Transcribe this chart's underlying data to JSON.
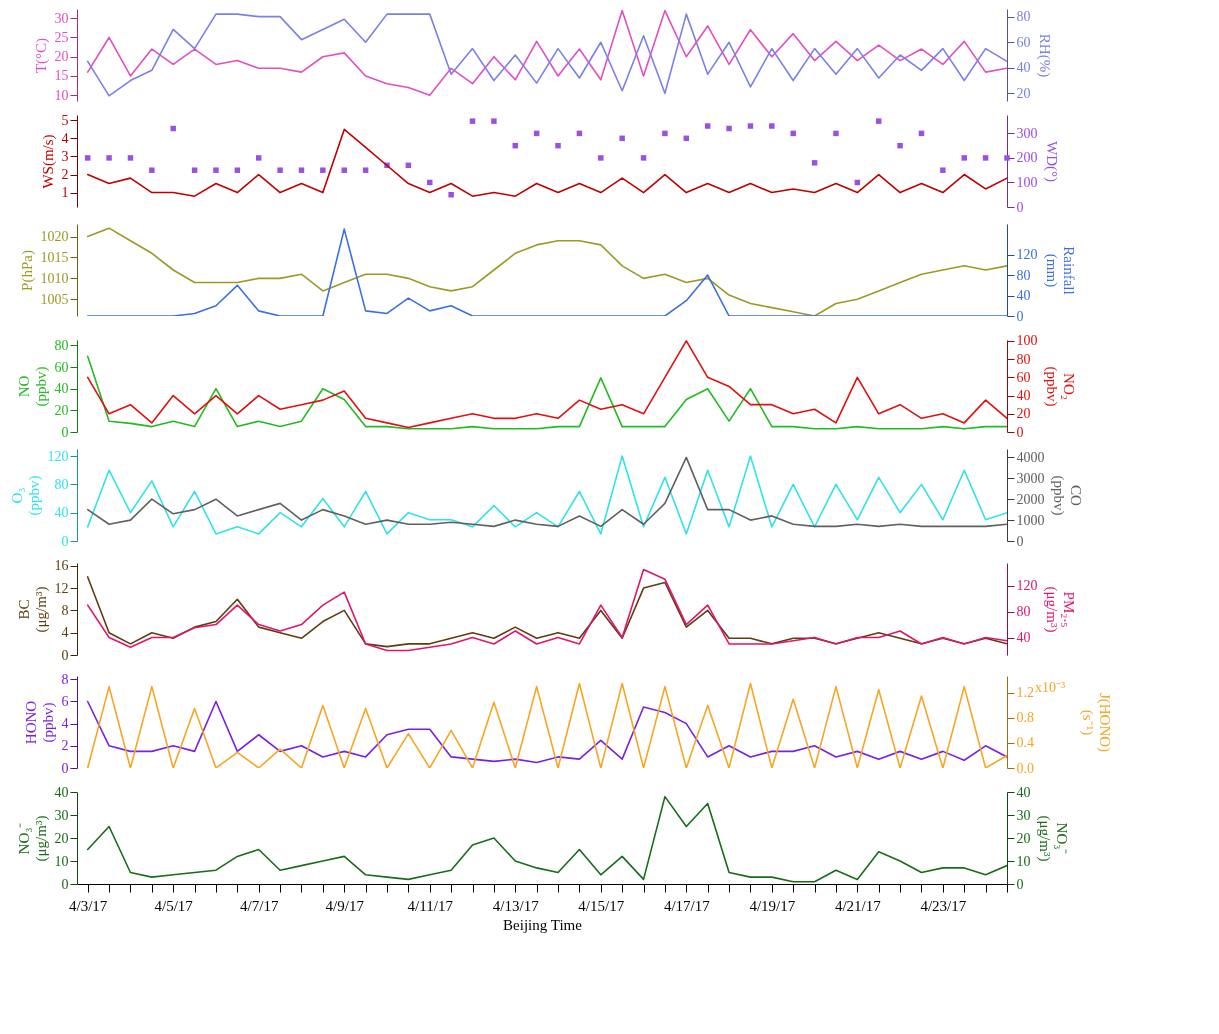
{
  "chart_data": [
    {
      "type": "line",
      "tick_labels": "y",
      "ylabel": "T(°C)",
      "y2label": "RH(%)",
      "xlim": [
        "--04-02T18:00",
        "--04-24T12:00"
      ],
      "ylim": [
        8.5,
        32.4
      ],
      "yticks": [
        10,
        15,
        20,
        25,
        30
      ],
      "y2lim": [
        14,
        86
      ],
      "y2ticks": [
        20,
        40,
        60,
        80
      ],
      "x": [
        "--04-03T00:00",
        "--04-03T12:00",
        "--04-04T00:00",
        "--04-04T12:00",
        "--04-05T00:00",
        "--04-05T12:00",
        "--04-06T00:00",
        "--04-06T12:00",
        "--04-07T00:00",
        "--04-07T12:00",
        "--04-08T00:00",
        "--04-08T12:00",
        "--04-09T00:00",
        "--04-09T12:00",
        "--04-10T00:00",
        "--04-10T12:00",
        "--04-11T00:00",
        "--04-11T12:00",
        "--04-12T00:00",
        "--04-12T12:00",
        "--04-13T00:00",
        "--04-13T12:00",
        "--04-14T00:00",
        "--04-14T12:00",
        "--04-15T00:00",
        "--04-15T12:00",
        "--04-16T00:00",
        "--04-16T12:00",
        "--04-17T00:00",
        "--04-17T12:00",
        "--04-18T00:00",
        "--04-18T12:00",
        "--04-19T00:00",
        "--04-19T12:00",
        "--04-20T00:00",
        "--04-20T12:00",
        "--04-21T00:00",
        "--04-21T12:00",
        "--04-22T00:00",
        "--04-22T12:00",
        "--04-23T00:00",
        "--04-23T12:00",
        "--04-24T00:00",
        "--04-24T12:00"
      ],
      "series": [
        {
          "type": "line",
          "color": "#e24fc0",
          "values": [
            16,
            25,
            15,
            22,
            18,
            22,
            18,
            19,
            17,
            17,
            16,
            20,
            21,
            15,
            13,
            12,
            10,
            17,
            13,
            20,
            14,
            24,
            15,
            22,
            14,
            32,
            15,
            32,
            20,
            28,
            18,
            27,
            20,
            26,
            19,
            24,
            19,
            23,
            19,
            22,
            18,
            24,
            16,
            17
          ]
        },
        {
          "type": "line",
          "axis": "y2",
          "color": "#7b80e6",
          "values": [
            45,
            18,
            30,
            38,
            70,
            55,
            82,
            82,
            80,
            80,
            62,
            70,
            78,
            60,
            82,
            82,
            82,
            35,
            55,
            30,
            50,
            28,
            55,
            32,
            60,
            22,
            65,
            20,
            82,
            35,
            60,
            25,
            55,
            30,
            55,
            35,
            55,
            32,
            50,
            38,
            55,
            30,
            55,
            45
          ]
        }
      ]
    },
    {
      "type": "line",
      "tick_labels": "y",
      "ylabel": "WS(m/s)",
      "y2label": "WD(°)",
      "xlim": [
        "--04-02T18:00",
        "--04-24T12:00"
      ],
      "ylim": [
        0.2,
        5.3
      ],
      "yticks": [
        1,
        2,
        3,
        4,
        5
      ],
      "y2lim": [
        0,
        375
      ],
      "y2ticks": [
        0,
        100,
        200,
        300
      ],
      "x": [
        "--04-03T00:00",
        "--04-03T12:00",
        "--04-04T00:00",
        "--04-04T12:00",
        "--04-05T00:00",
        "--04-05T12:00",
        "--04-06T00:00",
        "--04-06T12:00",
        "--04-07T00:00",
        "--04-07T12:00",
        "--04-08T00:00",
        "--04-08T12:00",
        "--04-09T00:00",
        "--04-09T12:00",
        "--04-10T00:00",
        "--04-10T12:00",
        "--04-11T00:00",
        "--04-11T12:00",
        "--04-12T00:00",
        "--04-12T12:00",
        "--04-13T00:00",
        "--04-13T12:00",
        "--04-14T00:00",
        "--04-14T12:00",
        "--04-15T00:00",
        "--04-15T12:00",
        "--04-16T00:00",
        "--04-16T12:00",
        "--04-17T00:00",
        "--04-17T12:00",
        "--04-18T00:00",
        "--04-18T12:00",
        "--04-19T00:00",
        "--04-19T12:00",
        "--04-20T00:00",
        "--04-20T12:00",
        "--04-21T00:00",
        "--04-21T12:00",
        "--04-22T00:00",
        "--04-22T12:00",
        "--04-23T00:00",
        "--04-23T12:00",
        "--04-24T00:00",
        "--04-24T12:00"
      ],
      "series": [
        {
          "type": "scatter",
          "axis": "y2",
          "color": "#9b4fe6",
          "values": [
            200,
            200,
            200,
            150,
            320,
            150,
            150,
            150,
            200,
            150,
            150,
            150,
            150,
            150,
            170,
            170,
            100,
            50,
            350,
            350,
            250,
            300,
            250,
            300,
            200,
            280,
            200,
            300,
            280,
            330,
            320,
            330,
            330,
            300,
            180,
            300,
            100,
            350,
            250,
            300,
            150,
            200,
            200,
            200
          ]
        },
        {
          "type": "line",
          "color": "#c00000",
          "values": [
            2,
            1.5,
            1.8,
            1,
            1,
            0.8,
            1.5,
            1,
            2,
            1,
            1.5,
            1,
            4.5,
            3.5,
            2.5,
            1.5,
            1,
            1.5,
            0.8,
            1,
            0.8,
            1.5,
            1,
            1.5,
            1,
            1.8,
            1,
            2,
            1,
            1.5,
            1,
            1.5,
            1,
            1.2,
            1,
            1.5,
            1,
            2,
            1,
            1.5,
            1,
            2,
            1.2,
            1.8
          ]
        }
      ]
    },
    {
      "type": "line",
      "tick_labels": "y",
      "ylabel": "P(hPa)",
      "y2label": "Rainfall (mm)",
      "xlim": [
        "--04-02T18:00",
        "--04-24T12:00"
      ],
      "ylim": [
        1001,
        1023
      ],
      "yticks": [
        1005,
        1010,
        1015,
        1020
      ],
      "y2lim": [
        0,
        180
      ],
      "y2ticks": [
        0,
        40,
        80,
        120
      ],
      "x": [
        "--04-03T00:00",
        "--04-03T12:00",
        "--04-04T00:00",
        "--04-04T12:00",
        "--04-05T00:00",
        "--04-05T12:00",
        "--04-06T00:00",
        "--04-06T12:00",
        "--04-07T00:00",
        "--04-07T12:00",
        "--04-08T00:00",
        "--04-08T12:00",
        "--04-09T00:00",
        "--04-09T12:00",
        "--04-10T00:00",
        "--04-10T12:00",
        "--04-11T00:00",
        "--04-11T12:00",
        "--04-12T00:00",
        "--04-12T12:00",
        "--04-13T00:00",
        "--04-13T12:00",
        "--04-14T00:00",
        "--04-14T12:00",
        "--04-15T00:00",
        "--04-15T12:00",
        "--04-16T00:00",
        "--04-16T12:00",
        "--04-17T00:00",
        "--04-17T12:00",
        "--04-18T00:00",
        "--04-18T12:00",
        "--04-19T00:00",
        "--04-19T12:00",
        "--04-20T00:00",
        "--04-20T12:00",
        "--04-21T00:00",
        "--04-21T12:00",
        "--04-22T00:00",
        "--04-22T12:00",
        "--04-23T00:00",
        "--04-23T12:00",
        "--04-24T00:00",
        "--04-24T12:00"
      ],
      "series": [
        {
          "type": "line",
          "color": "#9c9a22",
          "values": [
            1020,
            1022,
            1019,
            1016,
            1012,
            1009,
            1009,
            1009,
            1010,
            1010,
            1011,
            1007,
            1009,
            1011,
            1011,
            1010,
            1008,
            1007,
            1008,
            1012,
            1016,
            1018,
            1019,
            1019,
            1018,
            1013,
            1010,
            1011,
            1009,
            1010,
            1006,
            1004,
            1003,
            1002,
            1001,
            1004,
            1005,
            1007,
            1009,
            1011,
            1012,
            1013,
            1012,
            1013
          ]
        },
        {
          "type": "line",
          "axis": "y2",
          "color": "#3c6fe0",
          "values": [
            0,
            0,
            0,
            0,
            0,
            5,
            20,
            60,
            10,
            0,
            0,
            0,
            170,
            10,
            5,
            35,
            10,
            20,
            0,
            0,
            0,
            0,
            0,
            0,
            0,
            0,
            0,
            0,
            30,
            80,
            0,
            0,
            0,
            0,
            0,
            0,
            0,
            0,
            0,
            0,
            0,
            0,
            0,
            0
          ]
        }
      ]
    },
    {
      "type": "line",
      "tick_labels": "y",
      "ylabel": "NO (ppbv)",
      "y2label": "NO₂ (ppbv)",
      "xlim": [
        "--04-02T18:00",
        "--04-24T12:00"
      ],
      "ylim": [
        0,
        85
      ],
      "yticks": [
        0,
        20,
        40,
        60,
        80
      ],
      "y2lim": [
        0,
        101
      ],
      "y2ticks": [
        0,
        20,
        40,
        60,
        80,
        100
      ],
      "x": [
        "--04-03T00:00",
        "--04-03T12:00",
        "--04-04T00:00",
        "--04-04T12:00",
        "--04-05T00:00",
        "--04-05T12:00",
        "--04-06T00:00",
        "--04-06T12:00",
        "--04-07T00:00",
        "--04-07T12:00",
        "--04-08T00:00",
        "--04-08T12:00",
        "--04-09T00:00",
        "--04-09T12:00",
        "--04-10T00:00",
        "--04-10T12:00",
        "--04-11T00:00",
        "--04-11T12:00",
        "--04-12T00:00",
        "--04-12T12:00",
        "--04-13T00:00",
        "--04-13T12:00",
        "--04-14T00:00",
        "--04-14T12:00",
        "--04-15T00:00",
        "--04-15T12:00",
        "--04-16T00:00",
        "--04-16T12:00",
        "--04-17T00:00",
        "--04-17T12:00",
        "--04-18T00:00",
        "--04-18T12:00",
        "--04-19T00:00",
        "--04-19T12:00",
        "--04-20T00:00",
        "--04-20T12:00",
        "--04-21T00:00",
        "--04-21T12:00",
        "--04-22T00:00",
        "--04-22T12:00",
        "--04-23T00:00",
        "--04-23T12:00",
        "--04-24T00:00",
        "--04-24T12:00"
      ],
      "series": [
        {
          "type": "line",
          "color": "#22bb22",
          "values": [
            70,
            10,
            8,
            5,
            10,
            5,
            40,
            5,
            10,
            5,
            10,
            40,
            30,
            5,
            5,
            3,
            3,
            3,
            5,
            3,
            3,
            3,
            5,
            5,
            50,
            5,
            5,
            5,
            30,
            40,
            10,
            40,
            5,
            5,
            3,
            3,
            5,
            3,
            3,
            3,
            5,
            3,
            5,
            5
          ]
        },
        {
          "type": "line",
          "axis": "y2",
          "color": "#e01010",
          "values": [
            60,
            20,
            30,
            10,
            40,
            20,
            40,
            20,
            40,
            25,
            30,
            35,
            45,
            15,
            10,
            5,
            10,
            15,
            20,
            15,
            15,
            20,
            15,
            35,
            25,
            30,
            20,
            60,
            100,
            60,
            50,
            30,
            30,
            20,
            25,
            10,
            60,
            20,
            30,
            15,
            20,
            10,
            35,
            15
          ]
        }
      ]
    },
    {
      "type": "line",
      "tick_labels": "y",
      "ylabel": "O₃ (ppbv)",
      "y2label": "CO (ppbv)",
      "xlim": [
        "--04-02T18:00",
        "--04-24T12:00"
      ],
      "ylim": [
        0,
        130
      ],
      "yticks": [
        0,
        40,
        80,
        120
      ],
      "y2lim": [
        0,
        4400
      ],
      "y2ticks": [
        0,
        1000,
        2000,
        3000,
        4000
      ],
      "x": [
        "--04-03T00:00",
        "--04-03T12:00",
        "--04-04T00:00",
        "--04-04T12:00",
        "--04-05T00:00",
        "--04-05T12:00",
        "--04-06T00:00",
        "--04-06T12:00",
        "--04-07T00:00",
        "--04-07T12:00",
        "--04-08T00:00",
        "--04-08T12:00",
        "--04-09T00:00",
        "--04-09T12:00",
        "--04-10T00:00",
        "--04-10T12:00",
        "--04-11T00:00",
        "--04-11T12:00",
        "--04-12T00:00",
        "--04-12T12:00",
        "--04-13T00:00",
        "--04-13T12:00",
        "--04-14T00:00",
        "--04-14T12:00",
        "--04-15T00:00",
        "--04-15T12:00",
        "--04-16T00:00",
        "--04-16T12:00",
        "--04-17T00:00",
        "--04-17T12:00",
        "--04-18T00:00",
        "--04-18T12:00",
        "--04-19T00:00",
        "--04-19T12:00",
        "--04-20T00:00",
        "--04-20T12:00",
        "--04-21T00:00",
        "--04-21T12:00",
        "--04-22T00:00",
        "--04-22T12:00",
        "--04-23T00:00",
        "--04-23T12:00",
        "--04-24T00:00",
        "--04-24T12:00"
      ],
      "series": [
        {
          "type": "line",
          "color": "#2fe3e8",
          "values": [
            20,
            100,
            40,
            85,
            20,
            70,
            10,
            20,
            10,
            40,
            20,
            60,
            20,
            70,
            10,
            40,
            30,
            30,
            20,
            50,
            20,
            40,
            20,
            70,
            10,
            120,
            20,
            90,
            10,
            100,
            20,
            120,
            20,
            80,
            20,
            80,
            30,
            90,
            40,
            80,
            30,
            100,
            30,
            40
          ]
        },
        {
          "type": "line",
          "axis": "y2",
          "color": "#606060",
          "values": [
            1500,
            800,
            1000,
            2000,
            1300,
            1500,
            2000,
            1200,
            1500,
            1800,
            1000,
            1500,
            1200,
            800,
            1000,
            800,
            800,
            900,
            800,
            700,
            1000,
            800,
            700,
            1200,
            700,
            1500,
            800,
            1800,
            4000,
            1500,
            1500,
            1000,
            1200,
            800,
            700,
            700,
            800,
            700,
            800,
            700,
            700,
            700,
            700,
            800
          ]
        }
      ]
    },
    {
      "type": "line",
      "tick_labels": "y",
      "ylabel": "BC (μg/m³)",
      "y2label": "PM₂.₅ (μg/m³)",
      "xlim": [
        "--04-02T18:00",
        "--04-24T12:00"
      ],
      "ylim": [
        0,
        16.5
      ],
      "yticks": [
        0,
        4,
        8,
        12,
        16
      ],
      "y2lim": [
        13,
        155
      ],
      "y2ticks": [
        40,
        80,
        120
      ],
      "x": [
        "--04-03T00:00",
        "--04-03T12:00",
        "--04-04T00:00",
        "--04-04T12:00",
        "--04-05T00:00",
        "--04-05T12:00",
        "--04-06T00:00",
        "--04-06T12:00",
        "--04-07T00:00",
        "--04-07T12:00",
        "--04-08T00:00",
        "--04-08T12:00",
        "--04-09T00:00",
        "--04-09T12:00",
        "--04-10T00:00",
        "--04-10T12:00",
        "--04-11T00:00",
        "--04-11T12:00",
        "--04-12T00:00",
        "--04-12T12:00",
        "--04-13T00:00",
        "--04-13T12:00",
        "--04-14T00:00",
        "--04-14T12:00",
        "--04-15T00:00",
        "--04-15T12:00",
        "--04-16T00:00",
        "--04-16T12:00",
        "--04-17T00:00",
        "--04-17T12:00",
        "--04-18T00:00",
        "--04-18T12:00",
        "--04-19T00:00",
        "--04-19T12:00",
        "--04-20T00:00",
        "--04-20T12:00",
        "--04-21T00:00",
        "--04-21T12:00",
        "--04-22T00:00",
        "--04-22T12:00",
        "--04-23T00:00",
        "--04-23T12:00",
        "--04-24T00:00",
        "--04-24T12:00"
      ],
      "series": [
        {
          "type": "line",
          "color": "#5e3d0e",
          "values": [
            14,
            4,
            2,
            4,
            3,
            5,
            6,
            10,
            5,
            4,
            3,
            6,
            8,
            2,
            1.5,
            2,
            2,
            3,
            4,
            3,
            5,
            3,
            4,
            3,
            8,
            3,
            12,
            13,
            5,
            8,
            3,
            3,
            2,
            3,
            3,
            2,
            3,
            4,
            3,
            2,
            3,
            2,
            3,
            2
          ]
        },
        {
          "type": "line",
          "axis": "y2",
          "color": "#e0156e",
          "values": [
            90,
            40,
            25,
            40,
            40,
            55,
            60,
            90,
            60,
            50,
            60,
            90,
            110,
            30,
            20,
            20,
            25,
            30,
            40,
            30,
            50,
            30,
            40,
            30,
            90,
            40,
            145,
            130,
            60,
            90,
            30,
            30,
            30,
            35,
            40,
            30,
            40,
            40,
            50,
            30,
            40,
            30,
            40,
            35
          ]
        }
      ]
    },
    {
      "type": "line",
      "tick_labels": "y",
      "ylabel": "HONO (ppbv)",
      "y2label": "J(HONO) (s⁻¹)",
      "annotations": [
        "x10⁻³"
      ],
      "xlim": [
        "--04-02T18:00",
        "--04-24T12:00"
      ],
      "ylim": [
        0,
        8.3
      ],
      "yticks": [
        0,
        2,
        4,
        6,
        8
      ],
      "y2lim": [
        0,
        1.47
      ],
      "y2ticks": [
        {
          "value": 0,
          "label": "0.0"
        },
        {
          "value": 0.4,
          "label": "0.4"
        },
        {
          "value": 0.8,
          "label": "0.8"
        },
        {
          "value": 1.2,
          "label": "1.2"
        }
      ],
      "x": [
        "--04-03T00:00",
        "--04-03T12:00",
        "--04-04T00:00",
        "--04-04T12:00",
        "--04-05T00:00",
        "--04-05T12:00",
        "--04-06T00:00",
        "--04-06T12:00",
        "--04-07T00:00",
        "--04-07T12:00",
        "--04-08T00:00",
        "--04-08T12:00",
        "--04-09T00:00",
        "--04-09T12:00",
        "--04-10T00:00",
        "--04-10T12:00",
        "--04-11T00:00",
        "--04-11T12:00",
        "--04-12T00:00",
        "--04-12T12:00",
        "--04-13T00:00",
        "--04-13T12:00",
        "--04-14T00:00",
        "--04-14T12:00",
        "--04-15T00:00",
        "--04-15T12:00",
        "--04-16T00:00",
        "--04-16T12:00",
        "--04-17T00:00",
        "--04-17T12:00",
        "--04-18T00:00",
        "--04-18T12:00",
        "--04-19T00:00",
        "--04-19T12:00",
        "--04-20T00:00",
        "--04-20T12:00",
        "--04-21T00:00",
        "--04-21T12:00",
        "--04-22T00:00",
        "--04-22T12:00",
        "--04-23T00:00",
        "--04-23T12:00",
        "--04-24T00:00",
        "--04-24T12:00"
      ],
      "series": [
        {
          "type": "line",
          "color": "#7a20e0",
          "values": [
            6,
            2,
            1.5,
            1.5,
            2,
            1.5,
            6,
            1.5,
            3,
            1.5,
            2,
            1,
            1.5,
            1,
            3,
            3.5,
            3.5,
            1,
            0.8,
            0.6,
            0.8,
            0.5,
            1,
            0.8,
            2.5,
            0.8,
            5.5,
            5,
            4,
            1,
            2,
            1,
            1.5,
            1.5,
            2,
            1,
            1.5,
            0.8,
            1.5,
            0.8,
            1.5,
            0.7,
            2,
            1
          ]
        },
        {
          "type": "line",
          "axis": "y2",
          "color": "#f5a623",
          "values": [
            0,
            1.3,
            0,
            1.3,
            0,
            0.95,
            0,
            0.25,
            0,
            0.3,
            0,
            1,
            0,
            0.95,
            0,
            0.55,
            0,
            0.6,
            0,
            1.05,
            0,
            1.3,
            0,
            1.35,
            0,
            1.35,
            0,
            1.3,
            0,
            1,
            0,
            1.35,
            0,
            1.1,
            0,
            1.3,
            0,
            1.25,
            0,
            1.15,
            0,
            1.3,
            0,
            0.2
          ]
        }
      ]
    },
    {
      "type": "line",
      "xlabel": "Beijing Time",
      "ylabel": "NO₃⁻ (μg/m³)",
      "y2label": "NO₃⁻ (μg/m³)",
      "xlim": [
        "--04-02T18:00",
        "--04-24T12:00"
      ],
      "ylim": [
        0,
        40
      ],
      "yticks": [
        0,
        10,
        20,
        30,
        40
      ],
      "y2lim": [
        0,
        40
      ],
      "y2ticks": [
        0,
        10,
        20,
        30,
        40
      ],
      "xticks": [
        {
          "value": "--04-03T00:00",
          "label": "4/3/17"
        },
        {
          "value": "--04-03T12:00",
          "label": null
        },
        {
          "value": "--04-04T00:00",
          "label": null
        },
        {
          "value": "--04-04T12:00",
          "label": null
        },
        {
          "value": "--04-05T00:00",
          "label": "4/5/17"
        },
        {
          "value": "--04-05T12:00",
          "label": null
        },
        {
          "value": "--04-06T00:00",
          "label": null
        },
        {
          "value": "--04-06T12:00",
          "label": null
        },
        {
          "value": "--04-07T00:00",
          "label": "4/7/17"
        },
        {
          "value": "--04-07T12:00",
          "label": null
        },
        {
          "value": "--04-08T00:00",
          "label": null
        },
        {
          "value": "--04-08T12:00",
          "label": null
        },
        {
          "value": "--04-09T00:00",
          "label": "4/9/17"
        },
        {
          "value": "--04-09T12:00",
          "label": null
        },
        {
          "value": "--04-10T00:00",
          "label": null
        },
        {
          "value": "--04-10T12:00",
          "label": null
        },
        {
          "value": "--04-11T00:00",
          "label": "4/11/17"
        },
        {
          "value": "--04-11T12:00",
          "label": null
        },
        {
          "value": "--04-12T00:00",
          "label": null
        },
        {
          "value": "--04-12T12:00",
          "label": null
        },
        {
          "value": "--04-13T00:00",
          "label": "4/13/17"
        },
        {
          "value": "--04-13T12:00",
          "label": null
        },
        {
          "value": "--04-14T00:00",
          "label": null
        },
        {
          "value": "--04-14T12:00",
          "label": null
        },
        {
          "value": "--04-15T00:00",
          "label": "4/15/17"
        },
        {
          "value": "--04-15T12:00",
          "label": null
        },
        {
          "value": "--04-16T00:00",
          "label": null
        },
        {
          "value": "--04-16T12:00",
          "label": null
        },
        {
          "value": "--04-17T00:00",
          "label": "4/17/17"
        },
        {
          "value": "--04-17T12:00",
          "label": null
        },
        {
          "value": "--04-18T00:00",
          "label": null
        },
        {
          "value": "--04-18T12:00",
          "label": null
        },
        {
          "value": "--04-19T00:00",
          "label": "4/19/17"
        },
        {
          "value": "--04-19T12:00",
          "label": null
        },
        {
          "value": "--04-20T00:00",
          "label": null
        },
        {
          "value": "--04-20T12:00",
          "label": null
        },
        {
          "value": "--04-21T00:00",
          "label": "4/21/17"
        },
        {
          "value": "--04-21T12:00",
          "label": null
        },
        {
          "value": "--04-22T00:00",
          "label": null
        },
        {
          "value": "--04-22T12:00",
          "label": null
        },
        {
          "value": "--04-23T00:00",
          "label": "4/23/17"
        },
        {
          "value": "--04-23T12:00",
          "label": null
        },
        {
          "value": "--04-24T00:00",
          "label": null
        },
        {
          "value": "--04-24T12:00",
          "label": null
        }
      ],
      "x": [
        "--04-03T00:00",
        "--04-03T12:00",
        "--04-04T00:00",
        "--04-04T12:00",
        "--04-05T00:00",
        "--04-05T12:00",
        "--04-06T00:00",
        "--04-06T12:00",
        "--04-07T00:00",
        "--04-07T12:00",
        "--04-08T00:00",
        "--04-08T12:00",
        "--04-09T00:00",
        "--04-09T12:00",
        "--04-10T00:00",
        "--04-10T12:00",
        "--04-11T00:00",
        "--04-11T12:00",
        "--04-12T00:00",
        "--04-12T12:00",
        "--04-13T00:00",
        "--04-13T12:00",
        "--04-14T00:00",
        "--04-14T12:00",
        "--04-15T00:00",
        "--04-15T12:00",
        "--04-16T00:00",
        "--04-16T12:00",
        "--04-17T00:00",
        "--04-17T12:00",
        "--04-18T00:00",
        "--04-18T12:00",
        "--04-19T00:00",
        "--04-19T12:00",
        "--04-20T00:00",
        "--04-20T12:00",
        "--04-21T00:00",
        "--04-21T12:00",
        "--04-22T00:00",
        "--04-22T12:00",
        "--04-23T00:00",
        "--04-23T12:00",
        "--04-24T00:00",
        "--04-24T12:00"
      ],
      "series": [
        {
          "type": "line",
          "color": "#1a6b1a",
          "values": [
            15,
            25,
            5,
            3,
            4,
            5,
            6,
            12,
            15,
            6,
            8,
            10,
            12,
            4,
            3,
            2,
            4,
            6,
            17,
            20,
            10,
            7,
            5,
            15,
            4,
            12,
            2,
            38,
            25,
            35,
            5,
            3,
            3,
            1,
            1,
            6,
            2,
            14,
            10,
            5,
            7,
            7,
            4,
            8
          ]
        }
      ]
    }
  ]
}
